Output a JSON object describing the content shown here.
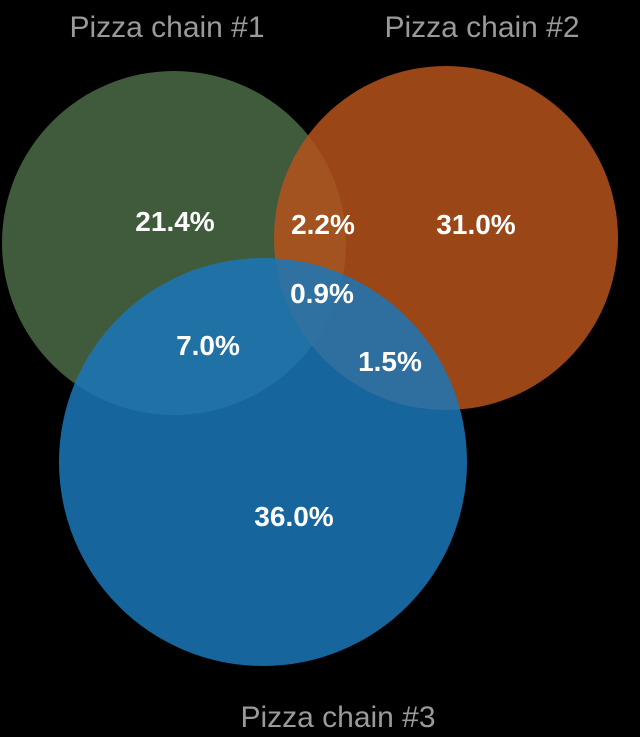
{
  "venn": {
    "sets": [
      {
        "name": "Pizza chain #1",
        "color": "#4a6b46"
      },
      {
        "name": "Pizza chain #2",
        "color": "#b5521b"
      },
      {
        "name": "Pizza chain #3",
        "color": "#1b77b8"
      }
    ],
    "regions": {
      "only_1": "21.4%",
      "only_2": "31.0%",
      "only_3": "36.0%",
      "1_and_2": "2.2%",
      "1_and_3": "7.0%",
      "2_and_3": "1.5%",
      "all_three": "0.9%"
    },
    "background_color": "#000000",
    "set_label_color": "#9a9a9a",
    "region_label_color": "#ffffff"
  }
}
